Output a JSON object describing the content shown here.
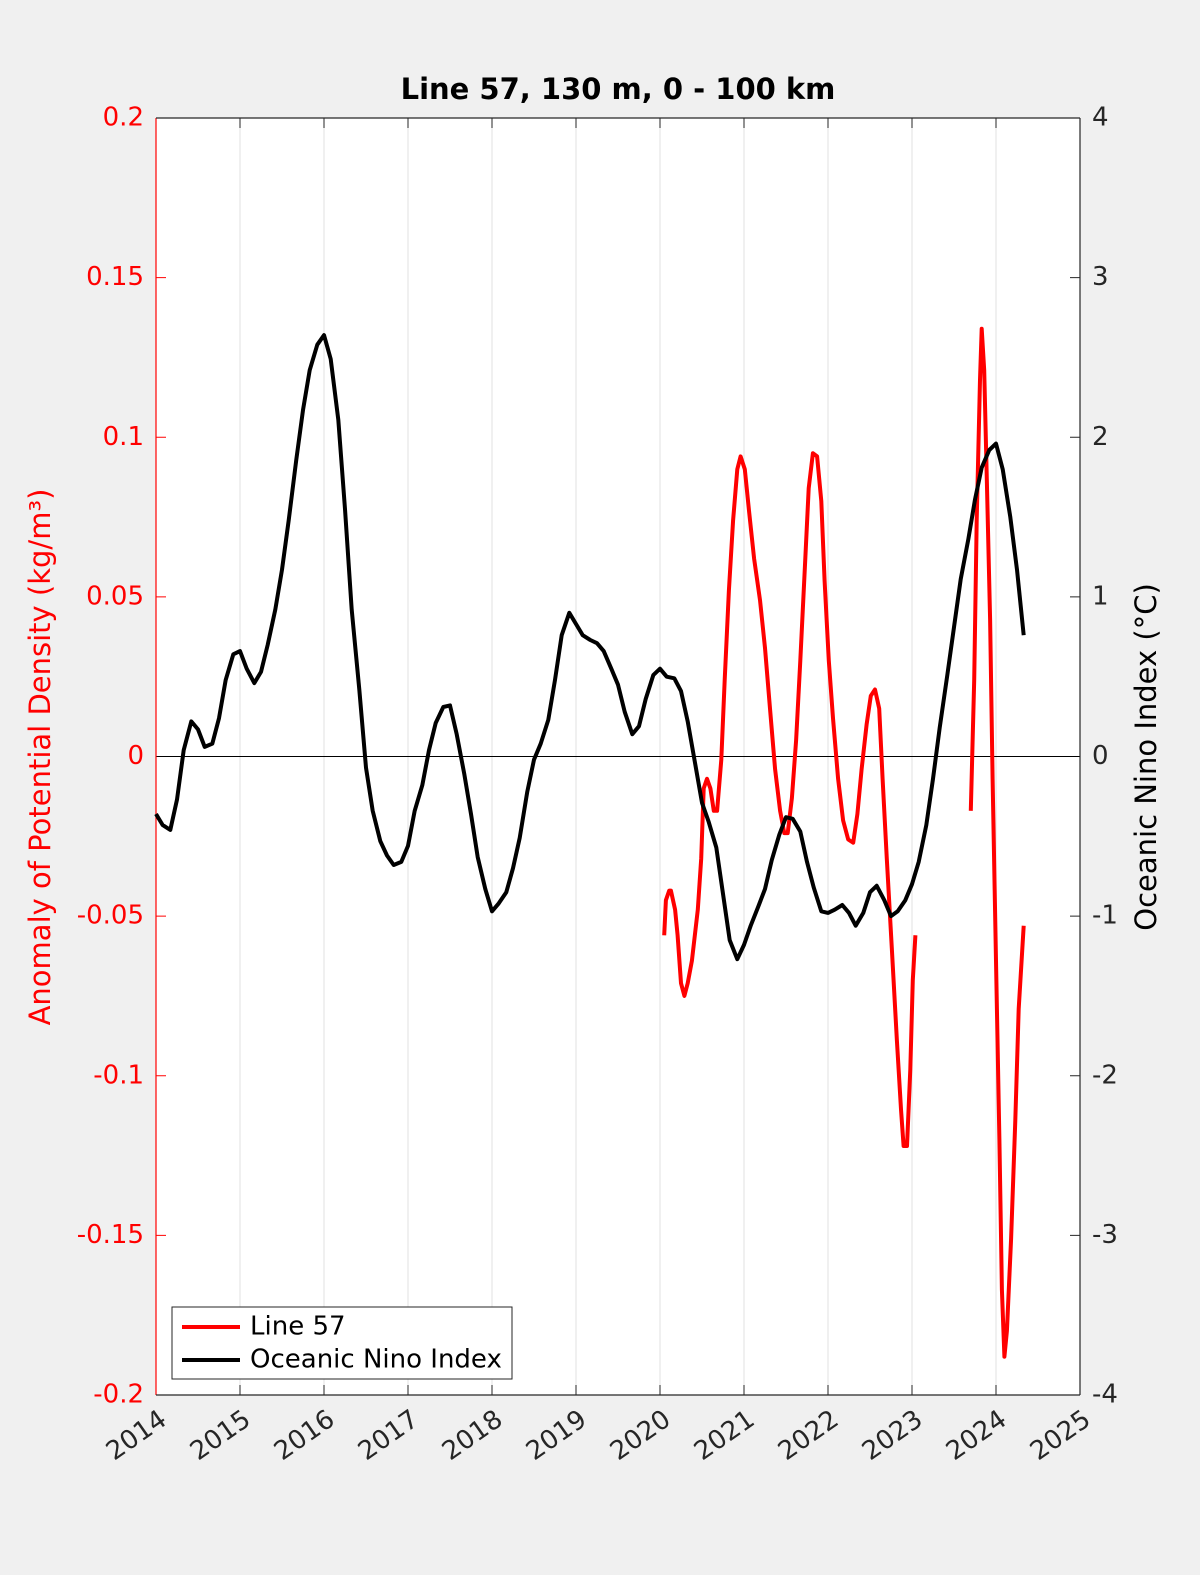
{
  "chart_data": {
    "type": "line",
    "title": "Line 57, 130 m, 0 - 100 km",
    "ylabel": "Anomaly of Potential Density (kg/m³)",
    "y2label": "Oceanic Nino Index (°C)",
    "xlim": [
      2014,
      2025
    ],
    "xticks": [
      2014,
      2015,
      2016,
      2017,
      2018,
      2019,
      2020,
      2021,
      2022,
      2023,
      2024,
      2025
    ],
    "ylim": [
      -0.2,
      0.2
    ],
    "yticks": [
      -0.2,
      -0.15,
      -0.1,
      -0.05,
      0,
      0.05,
      0.1,
      0.15,
      0.2
    ],
    "y2lim": [
      -4,
      4
    ],
    "y2ticks": [
      -4,
      -3,
      -2,
      -1,
      0,
      1,
      2,
      3,
      4
    ],
    "grid": "x",
    "legend": "lower left",
    "ylabel_color": "#ff0000",
    "series": [
      {
        "name": "Line 57",
        "color": "#ff0000",
        "axis": "y",
        "x": [
          2020.05,
          2020.07,
          2020.11,
          2020.13,
          2020.18,
          2020.21,
          2020.25,
          2020.29,
          2020.33,
          2020.38,
          2020.45,
          2020.49,
          2020.52,
          2020.56,
          2020.6,
          2020.64,
          2020.68,
          2020.73,
          2020.77,
          2020.82,
          2020.87,
          2020.92,
          2020.96,
          2021.01,
          2021.06,
          2021.12,
          2021.19,
          2021.25,
          2021.31,
          2021.37,
          2021.43,
          2021.48,
          2021.52,
          2021.57,
          2021.62,
          2021.67,
          2021.73,
          2021.77,
          2021.82,
          2021.87,
          2021.92,
          2021.96,
          2022.01,
          2022.06,
          2022.12,
          2022.18,
          2022.24,
          2022.3,
          2022.35,
          2022.4,
          2022.46,
          2022.51,
          2022.56,
          2022.61,
          2022.65,
          2022.7,
          2022.76,
          2022.82,
          2022.87,
          2022.9,
          2022.94,
          2022.98,
          2023.01,
          2023.04,
          2023.4,
          2023.7,
          2023.74,
          2023.77,
          2023.81,
          2023.83,
          2023.86,
          2023.89,
          2023.93,
          2023.96,
          2024.0,
          2024.04,
          2024.07,
          2024.1,
          2024.13,
          2024.18,
          2024.23,
          2024.27,
          2024.33
        ],
        "values": [
          -0.056,
          -0.045,
          -0.042,
          -0.042,
          -0.048,
          -0.056,
          -0.071,
          -0.075,
          -0.071,
          -0.064,
          -0.048,
          -0.032,
          -0.01,
          -0.007,
          -0.01,
          -0.017,
          -0.017,
          -0.001,
          0.024,
          0.052,
          0.074,
          0.09,
          0.094,
          0.09,
          0.077,
          0.062,
          0.049,
          0.034,
          0.015,
          -0.004,
          -0.017,
          -0.024,
          -0.024,
          -0.013,
          0.005,
          0.03,
          0.062,
          0.084,
          0.095,
          0.094,
          0.08,
          0.055,
          0.03,
          0.012,
          -0.007,
          -0.02,
          -0.026,
          -0.027,
          -0.018,
          -0.004,
          0.01,
          0.019,
          0.021,
          0.015,
          -0.007,
          -0.032,
          -0.06,
          -0.089,
          -0.111,
          -0.122,
          -0.122,
          -0.098,
          -0.07,
          -0.056,
          null,
          -0.017,
          0.024,
          0.074,
          0.118,
          0.134,
          0.121,
          0.087,
          0.043,
          -0.007,
          -0.064,
          -0.12,
          -0.167,
          -0.188,
          -0.18,
          -0.151,
          -0.114,
          -0.079,
          -0.053
        ]
      },
      {
        "name": "Oceanic Nino Index",
        "color": "#000000",
        "axis": "y2",
        "x": [
          2014,
          2014.08,
          2014.17,
          2014.25,
          2014.33,
          2014.42,
          2014.5,
          2014.58,
          2014.67,
          2014.75,
          2014.83,
          2014.92,
          2015,
          2015.08,
          2015.17,
          2015.25,
          2015.33,
          2015.42,
          2015.5,
          2015.58,
          2015.67,
          2015.75,
          2015.83,
          2015.92,
          2016,
          2016.08,
          2016.17,
          2016.25,
          2016.33,
          2016.42,
          2016.5,
          2016.58,
          2016.67,
          2016.75,
          2016.83,
          2016.92,
          2017,
          2017.08,
          2017.17,
          2017.25,
          2017.33,
          2017.42,
          2017.5,
          2017.58,
          2017.67,
          2017.75,
          2017.83,
          2017.92,
          2018,
          2018.08,
          2018.17,
          2018.25,
          2018.33,
          2018.42,
          2018.5,
          2018.58,
          2018.67,
          2018.75,
          2018.83,
          2018.92,
          2019,
          2019.08,
          2019.17,
          2019.25,
          2019.33,
          2019.42,
          2019.5,
          2019.58,
          2019.67,
          2019.75,
          2019.83,
          2019.92,
          2020,
          2020.08,
          2020.17,
          2020.25,
          2020.33,
          2020.42,
          2020.5,
          2020.58,
          2020.67,
          2020.75,
          2020.83,
          2020.92,
          2021,
          2021.08,
          2021.17,
          2021.25,
          2021.33,
          2021.42,
          2021.5,
          2021.58,
          2021.67,
          2021.75,
          2021.83,
          2021.92,
          2022,
          2022.08,
          2022.17,
          2022.25,
          2022.33,
          2022.42,
          2022.5,
          2022.58,
          2022.67,
          2022.75,
          2022.83,
          2022.92,
          2023,
          2023.08,
          2023.17,
          2023.25,
          2023.33,
          2023.42,
          2023.5,
          2023.58,
          2023.67,
          2023.75,
          2023.83,
          2023.92,
          2024,
          2024.08,
          2024.17,
          2024.25,
          2024.33
        ],
        "values": [
          -0.36,
          -0.43,
          -0.46,
          -0.27,
          0.04,
          0.22,
          0.17,
          0.06,
          0.08,
          0.24,
          0.48,
          0.64,
          0.66,
          0.55,
          0.46,
          0.53,
          0.7,
          0.92,
          1.17,
          1.48,
          1.86,
          2.17,
          2.42,
          2.58,
          2.64,
          2.49,
          2.11,
          1.55,
          0.92,
          0.42,
          -0.07,
          -0.34,
          -0.53,
          -0.62,
          -0.68,
          -0.66,
          -0.56,
          -0.34,
          -0.18,
          0.04,
          0.21,
          0.31,
          0.32,
          0.14,
          -0.11,
          -0.36,
          -0.63,
          -0.83,
          -0.97,
          -0.92,
          -0.85,
          -0.7,
          -0.51,
          -0.22,
          -0.02,
          0.08,
          0.23,
          0.48,
          0.76,
          0.9,
          0.83,
          0.76,
          0.73,
          0.71,
          0.66,
          0.55,
          0.45,
          0.28,
          0.14,
          0.19,
          0.36,
          0.51,
          0.55,
          0.5,
          0.49,
          0.41,
          0.22,
          -0.05,
          -0.29,
          -0.41,
          -0.57,
          -0.86,
          -1.15,
          -1.27,
          -1.18,
          -1.06,
          -0.94,
          -0.83,
          -0.65,
          -0.49,
          -0.38,
          -0.39,
          -0.47,
          -0.66,
          -0.82,
          -0.97,
          -0.98,
          -0.96,
          -0.93,
          -0.98,
          -1.06,
          -0.98,
          -0.85,
          -0.81,
          -0.9,
          -1.0,
          -0.97,
          -0.9,
          -0.8,
          -0.66,
          -0.43,
          -0.14,
          0.18,
          0.51,
          0.81,
          1.11,
          1.36,
          1.61,
          1.81,
          1.92,
          1.96,
          1.8,
          1.5,
          1.17,
          0.76
        ]
      }
    ]
  }
}
